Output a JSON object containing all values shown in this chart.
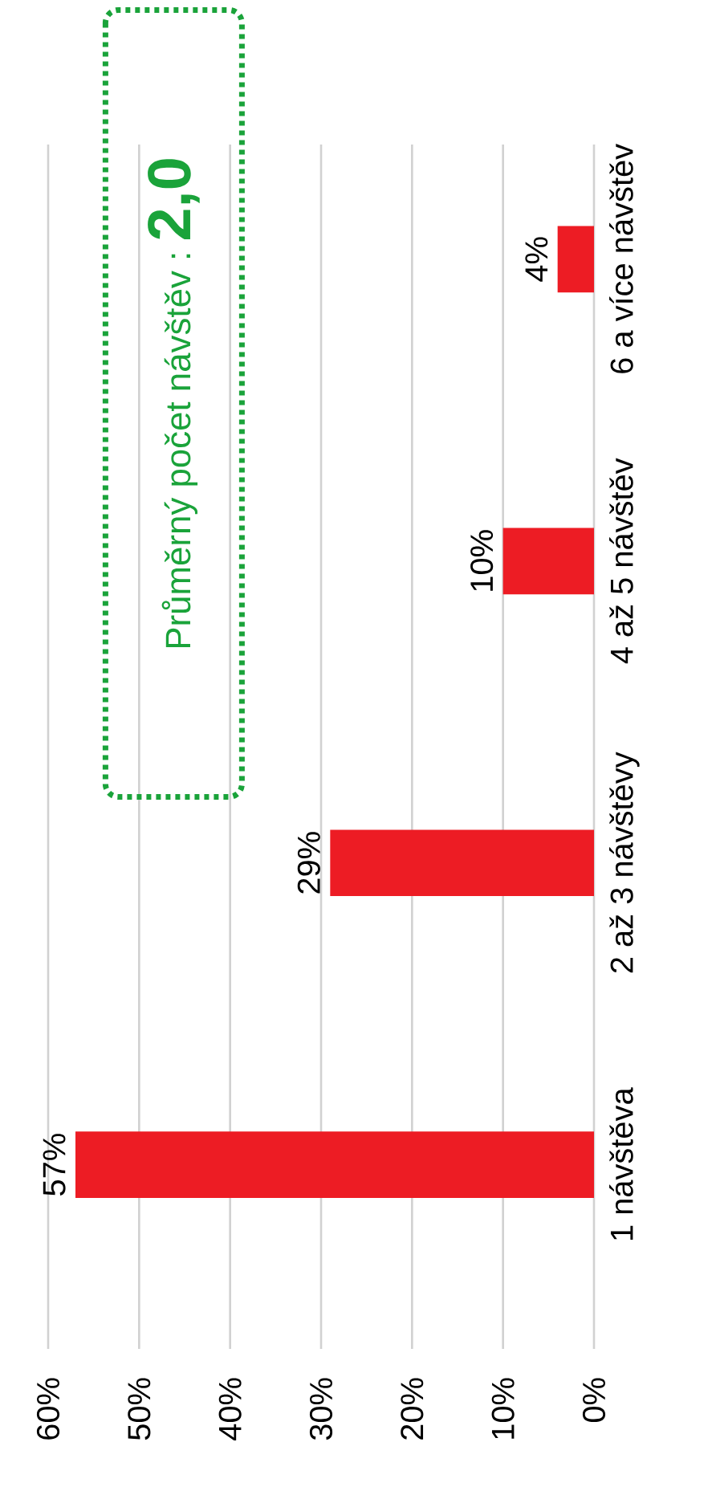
{
  "chart_data": {
    "type": "bar",
    "orientation": "horizontal",
    "categories": [
      "6 a více návštěv",
      "4 až 5 návštěv",
      "2 až 3 návštěvy",
      "1 návštěva"
    ],
    "values": [
      4,
      10,
      29,
      57
    ],
    "value_labels": [
      "4%",
      "10%",
      "29%",
      "57%"
    ],
    "color": "#ed1c24",
    "xlim": [
      60,
      0
    ],
    "xticks": [
      {
        "value": 60,
        "label": "60%"
      },
      {
        "value": 50,
        "label": "50%"
      },
      {
        "value": 40,
        "label": "40%"
      },
      {
        "value": 30,
        "label": "30%"
      },
      {
        "value": 20,
        "label": "20%"
      },
      {
        "value": 10,
        "label": "10%"
      },
      {
        "value": 0,
        "label": "0%"
      }
    ],
    "grid": "x",
    "annotations": [
      "Průměrný počet návštěv :",
      "2,0"
    ]
  }
}
